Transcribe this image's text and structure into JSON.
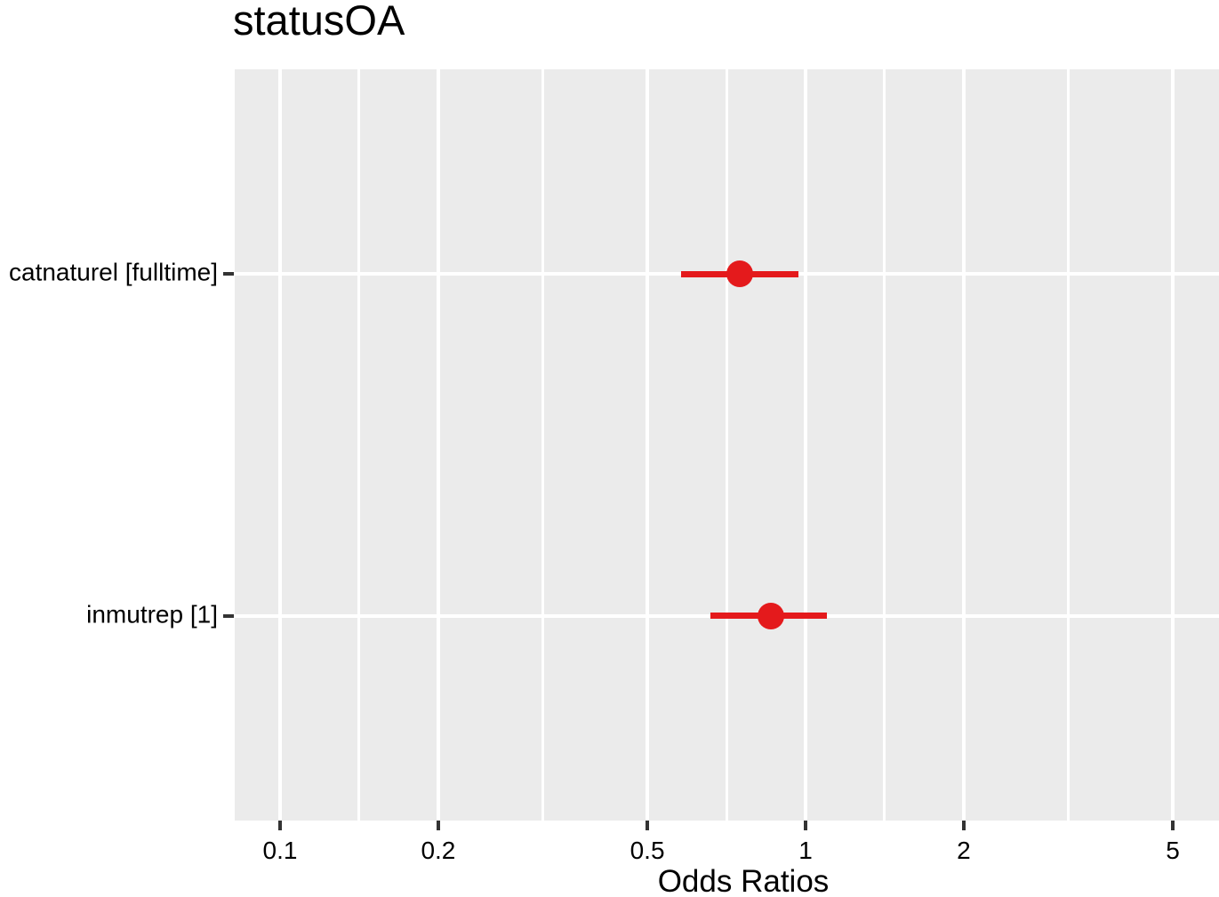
{
  "chart_data": {
    "type": "forest-dot-ci",
    "title": "statusOA",
    "xlabel": "Odds Ratios",
    "x_scale": "log10",
    "x_breaks": [
      0.1,
      0.2,
      0.5,
      1,
      2,
      5
    ],
    "x_break_labels": [
      "0.1",
      "0.2",
      "0.5",
      "1",
      "2",
      "5"
    ],
    "xlim": [
      0.08,
      6.1
    ],
    "grid": "major+minor, white on gray panel",
    "legend": "none",
    "rows": [
      {
        "label": "catnaturel [fulltime]",
        "or": 0.75,
        "ci_low": 0.58,
        "ci_high": 0.97
      },
      {
        "label": "inmutrep [1]",
        "or": 0.86,
        "ci_low": 0.66,
        "ci_high": 1.1
      }
    ],
    "colors": {
      "point": "#e41a1c",
      "panel_bg": "#ebebeb",
      "gridline": "#ffffff",
      "tick": "#333333",
      "text": "#000000"
    }
  }
}
